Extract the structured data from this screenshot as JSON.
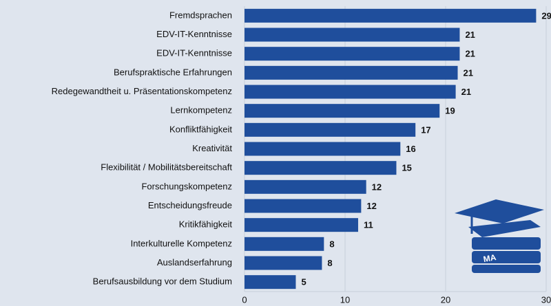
{
  "chart_data": {
    "type": "hbar",
    "categories": [
      "Fremdsprachen",
      "EDV-IT-Kenntnisse",
      "EDV-IT-Kenntnisse",
      "Berufspraktische Erfahrungen",
      "Redegewandtheit u. Präsentationskompetenz",
      "Lernkompetenz",
      "Konfliktfähigkeit",
      "Kreativität",
      "Flexibilität / Mobilitätsbereitschaft",
      "Forschungskompetenz",
      "Entscheidungsfreude",
      "Kritikfähigkeit",
      "Interkulturelle Kompetenz",
      "Auslandserfahrung",
      "Berufsausbildung vor dem Studium"
    ],
    "values": [
      29,
      21.4,
      21.4,
      21.2,
      21.0,
      19.4,
      17.0,
      15.5,
      15.1,
      12.1,
      11.6,
      11.3,
      7.9,
      7.7,
      5.1
    ],
    "value_labels": [
      "29",
      "21",
      "21",
      "21",
      "21",
      "19",
      "17",
      "16",
      "15",
      "12",
      "12",
      "11",
      "8",
      "8",
      "5"
    ],
    "color": "#1f4e9c",
    "xlim": [
      0,
      30
    ],
    "xticks": [
      0,
      10,
      20,
      30
    ],
    "grid": true
  },
  "logo": {
    "text": "MA"
  }
}
